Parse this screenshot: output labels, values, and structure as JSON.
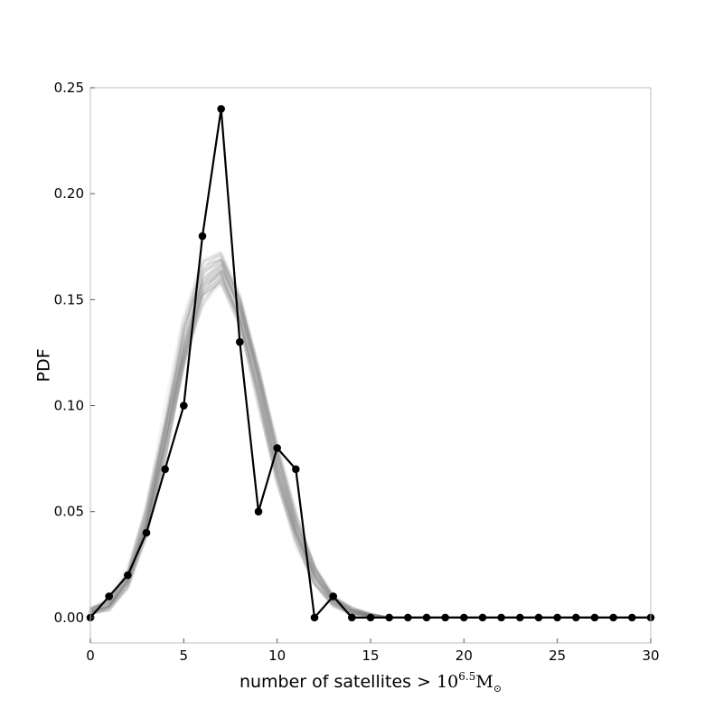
{
  "chart_data": {
    "type": "line",
    "xlabel": "number of satellites > ",
    "xlabel_math": {
      "base": "10",
      "exponent": "6.5",
      "unit": "M",
      "unit_subscript": "⊙"
    },
    "ylabel": "PDF",
    "xlim": [
      0,
      30
    ],
    "ylim": [
      -0.012,
      0.25
    ],
    "xticks": [
      0,
      5,
      10,
      15,
      20,
      25,
      30
    ],
    "xtick_labels": [
      "0",
      "5",
      "10",
      "15",
      "20",
      "25",
      "30"
    ],
    "yticks": [
      0.0,
      0.05,
      0.1,
      0.15,
      0.2,
      0.25
    ],
    "ytick_labels": [
      "0.00",
      "0.05",
      "0.10",
      "0.15",
      "0.20",
      "0.25"
    ],
    "grid": false,
    "legend": "none",
    "series": [
      {
        "style": "black line with circle markers",
        "color": "#000000",
        "x": [
          0,
          1,
          2,
          3,
          4,
          5,
          6,
          7,
          8,
          9,
          10,
          11,
          12,
          13,
          14,
          15,
          16,
          17,
          18,
          19,
          20,
          21,
          22,
          23,
          24,
          25,
          26,
          27,
          28,
          29,
          30
        ],
        "y": [
          0.0,
          0.01,
          0.02,
          0.04,
          0.07,
          0.1,
          0.18,
          0.24,
          0.13,
          0.05,
          0.08,
          0.07,
          0.0,
          0.01,
          0.0,
          0.0,
          0.0,
          0.0,
          0.0,
          0.0,
          0.0,
          0.0,
          0.0,
          0.0,
          0.0,
          0.0,
          0.0,
          0.0,
          0.0,
          0.0,
          0.0
        ]
      },
      {
        "style": "ensemble of many faint grey curves",
        "color": "#808080",
        "x": [
          0,
          1,
          2,
          3,
          4,
          5,
          6,
          7,
          8,
          9,
          10,
          11,
          12,
          13,
          14,
          15,
          16,
          17,
          18,
          19,
          20,
          21,
          22,
          23,
          24,
          25,
          26,
          27,
          28,
          29,
          30
        ],
        "y_center": [
          0.003,
          0.006,
          0.018,
          0.045,
          0.085,
          0.128,
          0.158,
          0.165,
          0.145,
          0.11,
          0.072,
          0.042,
          0.02,
          0.008,
          0.003,
          0.001,
          0.0,
          0.0,
          0.0,
          0.0,
          0.0,
          0.0,
          0.0,
          0.0,
          0.0,
          0.0,
          0.0,
          0.0,
          0.0,
          0.0,
          0.0
        ],
        "y_spread": [
          0.002,
          0.003,
          0.005,
          0.008,
          0.012,
          0.014,
          0.012,
          0.008,
          0.008,
          0.01,
          0.01,
          0.008,
          0.005,
          0.003,
          0.002,
          0.001,
          0.0,
          0.0,
          0.0,
          0.0,
          0.0,
          0.0,
          0.0,
          0.0,
          0.0,
          0.0,
          0.0,
          0.0,
          0.0,
          0.0,
          0.0
        ]
      }
    ]
  }
}
